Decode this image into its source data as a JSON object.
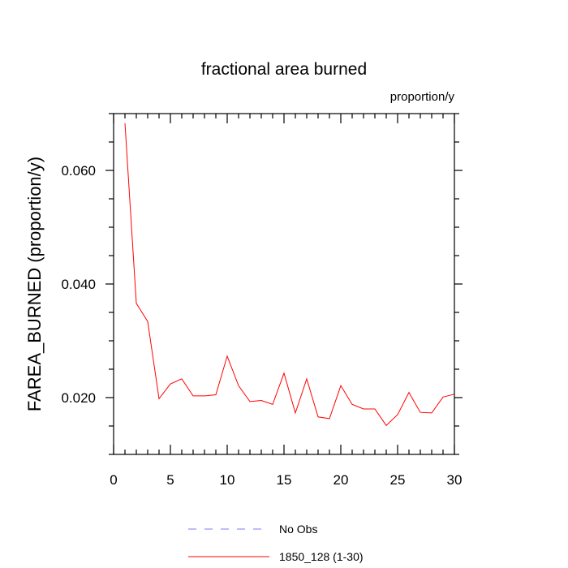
{
  "chart_data": {
    "type": "line",
    "title": "fractional area burned",
    "subtitle": "proportion/y",
    "xlabel": "",
    "ylabel": "FAREA_BURNED  (proportion/y)",
    "xlim": [
      0,
      30
    ],
    "ylim": [
      0.01,
      0.07
    ],
    "x_ticks": [
      0,
      5,
      10,
      15,
      20,
      25,
      30
    ],
    "x_tick_labels": [
      "0",
      "5",
      "10",
      "15",
      "20",
      "25",
      "30"
    ],
    "y_ticks": [
      0.02,
      0.04,
      0.06
    ],
    "y_tick_labels": [
      "0.020",
      "0.040",
      "0.060"
    ],
    "grid": false,
    "legend_position": "bottom",
    "series": [
      {
        "name": "No Obs",
        "color": "#7b7bff",
        "style": "dashed",
        "x": [],
        "values": []
      },
      {
        "name": "1850_128 (1-30)",
        "color": "#ff0000",
        "style": "solid",
        "x": [
          1,
          2,
          3,
          4,
          5,
          6,
          7,
          8,
          9,
          10,
          11,
          12,
          13,
          14,
          15,
          16,
          17,
          18,
          19,
          20,
          21,
          22,
          23,
          24,
          25,
          26,
          27,
          28,
          29,
          30
        ],
        "values": [
          0.0683,
          0.0366,
          0.0334,
          0.0198,
          0.0224,
          0.0233,
          0.0203,
          0.0203,
          0.0205,
          0.0273,
          0.0221,
          0.0193,
          0.0195,
          0.0188,
          0.0243,
          0.0173,
          0.0233,
          0.0166,
          0.0163,
          0.0221,
          0.0188,
          0.018,
          0.018,
          0.0151,
          0.017,
          0.0209,
          0.0174,
          0.0173,
          0.0201,
          0.0206
        ]
      }
    ]
  }
}
